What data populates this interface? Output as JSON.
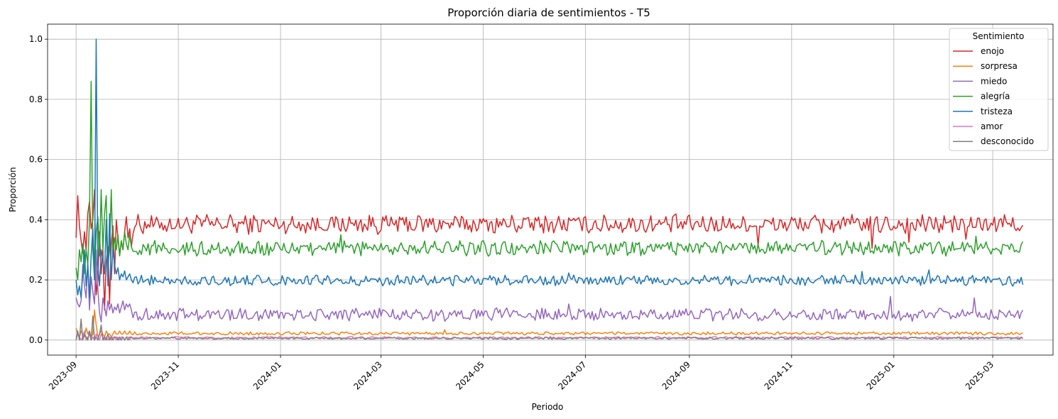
{
  "chart_data": {
    "type": "line",
    "title": "Proporción diaria de sentimientos - T5",
    "xlabel": "Periodo",
    "ylabel": "Proporción",
    "x_start": "2023-09-01",
    "x_end": "2025-03-19",
    "xlim": [
      "2023-08-15",
      "2025-04-06"
    ],
    "ylim": [
      -0.05,
      1.05
    ],
    "x_ticks": [
      "2023-09",
      "2023-11",
      "2024-01",
      "2024-03",
      "2024-05",
      "2024-07",
      "2024-09",
      "2024-11",
      "2025-01",
      "2025-03"
    ],
    "y_ticks": [
      "0.0",
      "0.2",
      "0.4",
      "0.6",
      "0.8",
      "1.0"
    ],
    "grid": true,
    "legend": {
      "title": "Sentimiento",
      "placement": "top-right"
    },
    "series": [
      {
        "name": "enojo",
        "color": "#d62728",
        "early": [
          0.34,
          0.48,
          0.38,
          0.33,
          0.29,
          0.36,
          0.3,
          0.42,
          0.46,
          0.37,
          0.4,
          0.5,
          0.15,
          0.2,
          0.36,
          0.22,
          0.3,
          0.1,
          0.26,
          0.31,
          0.12,
          0.32,
          0.38,
          0.22,
          0.4,
          0.34,
          0.28,
          0.33,
          0.3,
          0.36,
          0.41,
          0.34,
          0.37,
          0.31
        ],
        "level": 0.385,
        "noise": 0.018,
        "spikes": [
          [
            0.72,
            -0.07
          ],
          [
            0.84,
            -0.08
          ],
          [
            0.88,
            -0.06
          ],
          [
            0.94,
            -0.05
          ]
        ]
      },
      {
        "name": "sorpresa",
        "color": "#ff7f0e",
        "early": [
          0.04,
          0.02,
          0.01,
          0.03,
          0.02,
          0.01,
          0.04,
          0.02,
          0.03,
          0.01,
          0.02,
          0.1,
          0.05,
          0.01,
          0.02,
          0.03,
          0.02,
          0.01,
          0.03,
          0.02,
          0.02,
          0.01,
          0.02,
          0.03,
          0.02,
          0.02,
          0.03,
          0.02,
          0.02,
          0.03,
          0.02,
          0.02,
          0.03,
          0.02
        ],
        "level": 0.022,
        "noise": 0.003,
        "spikes": [
          [
            0.39,
            0.012
          ]
        ]
      },
      {
        "name": "miedo",
        "color": "#9467bd",
        "early": [
          0.14,
          0.12,
          0.11,
          0.13,
          0.25,
          0.18,
          0.14,
          0.26,
          0.1,
          0.21,
          0.16,
          0.12,
          0.3,
          0.17,
          0.09,
          0.06,
          0.14,
          0.11,
          0.08,
          0.13,
          0.1,
          0.12,
          0.09,
          0.11,
          0.1,
          0.12,
          0.09,
          0.11,
          0.13,
          0.1,
          0.12,
          0.11,
          0.12,
          0.1
        ],
        "level": 0.085,
        "noise": 0.012,
        "spikes": [
          [
            0.86,
            0.06
          ],
          [
            0.949,
            0.055
          ],
          [
            0.52,
            0.035
          ]
        ]
      },
      {
        "name": "alegría",
        "color": "#2ca02c",
        "early": [
          0.24,
          0.2,
          0.3,
          0.26,
          0.32,
          0.22,
          0.3,
          0.25,
          0.4,
          0.86,
          0.3,
          0.2,
          0.36,
          0.41,
          0.28,
          0.5,
          0.3,
          0.42,
          0.48,
          0.25,
          0.3,
          0.5,
          0.28,
          0.34,
          0.3,
          0.35,
          0.28,
          0.33,
          0.3,
          0.36,
          0.32,
          0.3,
          0.35,
          0.31
        ],
        "level": 0.305,
        "noise": 0.014,
        "spikes": [
          [
            0.28,
            0.045
          ],
          [
            0.79,
            0.02
          ],
          [
            0.95,
            0.04
          ]
        ]
      },
      {
        "name": "tristeza",
        "color": "#1f77b4",
        "early": [
          0.2,
          0.15,
          0.18,
          0.14,
          0.22,
          0.3,
          0.18,
          0.25,
          0.14,
          0.28,
          0.37,
          0.2,
          1.0,
          0.25,
          0.18,
          0.3,
          0.27,
          0.22,
          0.4,
          0.18,
          0.42,
          0.2,
          0.3,
          0.25,
          0.22,
          0.24,
          0.2,
          0.22,
          0.21,
          0.23,
          0.2,
          0.21,
          0.22,
          0.2
        ],
        "level": 0.198,
        "noise": 0.01,
        "spikes": [
          [
            0.52,
            0.025
          ],
          [
            0.83,
            0.03
          ],
          [
            0.9,
            0.035
          ]
        ]
      },
      {
        "name": "amor",
        "color": "#e377c2",
        "early": [
          0.0,
          0.02,
          0.01,
          0.0,
          0.01,
          0.03,
          0.0,
          0.01,
          0.02,
          0.0,
          0.01,
          0.0,
          0.02,
          0.01,
          0.0,
          0.02,
          0.01,
          0.0,
          0.01,
          0.0,
          0.01,
          0.0,
          0.01,
          0.01,
          0.0,
          0.01,
          0.0,
          0.01,
          0.01,
          0.0,
          0.01,
          0.01,
          0.0,
          0.01
        ],
        "level": 0.008,
        "noise": 0.002,
        "spikes": []
      },
      {
        "name": "desconocido",
        "color": "#7f7f7f",
        "early": [
          0.0,
          0.03,
          0.0,
          0.07,
          0.0,
          0.02,
          0.01,
          0.0,
          0.03,
          0.0,
          0.08,
          0.0,
          0.01,
          0.0,
          0.02,
          0.05,
          0.0,
          0.01,
          0.0,
          0.02,
          0.0,
          0.01,
          0.0,
          0.01,
          0.01,
          0.0,
          0.01,
          0.0,
          0.01,
          0.0,
          0.01,
          0.0,
          0.01,
          0.01
        ],
        "level": 0.006,
        "noise": 0.002,
        "spikes": []
      }
    ]
  }
}
